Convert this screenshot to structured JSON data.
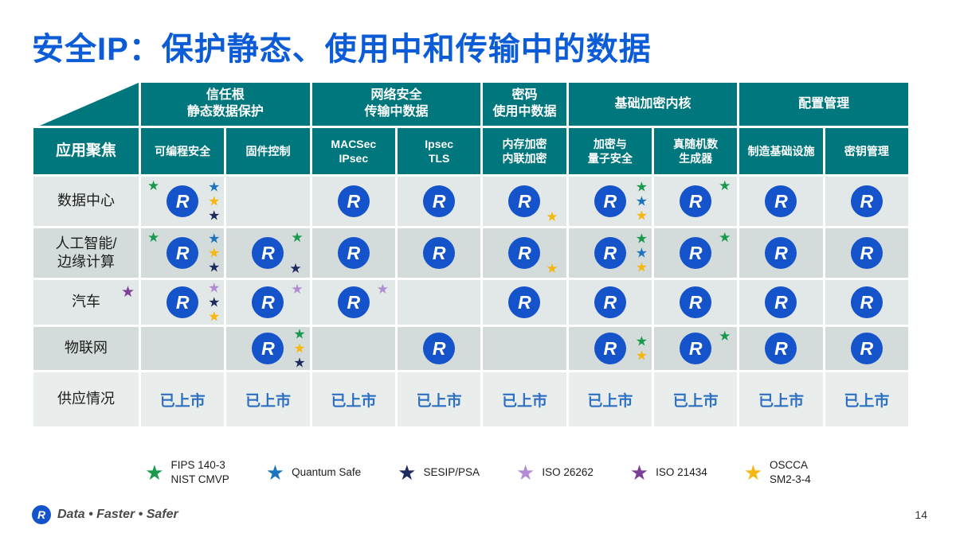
{
  "title": "安全IP：保护静态、使用中和传输中的数据",
  "logo_letter": "R",
  "colors": {
    "teal": "#00767d",
    "title_blue": "#0b5cd6",
    "availability_blue": "#2e6fc1",
    "logo_blue": "#1553cb"
  },
  "star_colors": {
    "green": "#18994b",
    "blue": "#1c75bc",
    "navy": "#1f2a5e",
    "light-purple": "#b38bd2",
    "dark-purple": "#7b3f98",
    "yellow": "#f5b711"
  },
  "table": {
    "corner_label": "应用聚焦",
    "groups": [
      {
        "label": "信任根\n静态数据保护",
        "span": 2
      },
      {
        "label": "网络安全\n传输中数据",
        "span": 2
      },
      {
        "label": "密码\n使用中数据",
        "span": 1
      },
      {
        "label": "基础加密内核",
        "span": 2
      },
      {
        "label": "配置管理",
        "span": 2
      }
    ],
    "columns": [
      "可编程安全",
      "固件控制",
      "MACSec\nIPsec",
      "Ipsec\nTLS",
      "内存加密\n内联加密",
      "加密与\n量子安全",
      "真随机数\n生成器",
      "制造基础设施",
      "密钥管理"
    ],
    "rows": [
      {
        "label": "数据中心",
        "cells": [
          {
            "logo": true,
            "tl": [
              "green"
            ],
            "right": [
              "blue",
              "yellow",
              "navy"
            ]
          },
          {},
          {
            "logo": true
          },
          {
            "logo": true
          },
          {
            "logo": true,
            "br": [
              "yellow"
            ]
          },
          {
            "logo": true,
            "right": [
              "green",
              "blue",
              "yellow"
            ]
          },
          {
            "logo": true,
            "tr": [
              "green"
            ]
          },
          {
            "logo": true
          },
          {
            "logo": true
          }
        ]
      },
      {
        "label": "人工智能/\n边缘计算",
        "cells": [
          {
            "logo": true,
            "tl": [
              "green"
            ],
            "right": [
              "blue",
              "yellow",
              "navy"
            ]
          },
          {
            "logo": true,
            "tr": [
              "green"
            ],
            "br": [
              "navy"
            ]
          },
          {
            "logo": true
          },
          {
            "logo": true
          },
          {
            "logo": true,
            "br": [
              "yellow"
            ]
          },
          {
            "logo": true,
            "right": [
              "green",
              "blue",
              "yellow"
            ]
          },
          {
            "logo": true,
            "tr": [
              "green"
            ]
          },
          {
            "logo": true
          },
          {
            "logo": true
          }
        ]
      },
      {
        "label": "汽车",
        "label_star": "dark-purple",
        "cells": [
          {
            "logo": true,
            "right": [
              "light-purple",
              "navy",
              "yellow"
            ]
          },
          {
            "logo": true,
            "tr": [
              "light-purple"
            ]
          },
          {
            "logo": true,
            "tr": [
              "light-purple"
            ]
          },
          {},
          {
            "logo": true
          },
          {
            "logo": true
          },
          {
            "logo": true
          },
          {
            "logo": true
          },
          {
            "logo": true
          }
        ]
      },
      {
        "label": "物联网",
        "cells": [
          {},
          {
            "logo": true,
            "right": [
              "green",
              "yellow",
              "navy"
            ]
          },
          {},
          {
            "logo": true
          },
          {},
          {
            "logo": true,
            "right": [
              "green",
              "yellow"
            ]
          },
          {
            "logo": true,
            "tr": [
              "green"
            ]
          },
          {
            "logo": true
          },
          {
            "logo": true
          }
        ]
      }
    ],
    "availability_label": "供应情况",
    "availability_value": "已上市"
  },
  "legend": [
    {
      "name": "green",
      "hex": "#18994b",
      "label": "FIPS 140-3\nNIST CMVP"
    },
    {
      "name": "blue",
      "hex": "#1c75bc",
      "label": "Quantum Safe"
    },
    {
      "name": "navy",
      "hex": "#1f2a5e",
      "label": "SESIP/PSA"
    },
    {
      "name": "light-purple",
      "hex": "#b38bd2",
      "label": "ISO 26262"
    },
    {
      "name": "dark-purple",
      "hex": "#7b3f98",
      "label": "ISO 21434"
    },
    {
      "name": "yellow",
      "hex": "#f5b711",
      "label": "OSCCA\nSM2-3-4"
    }
  ],
  "footer": {
    "brand": "Data • Faster • Safer",
    "page": "14"
  }
}
